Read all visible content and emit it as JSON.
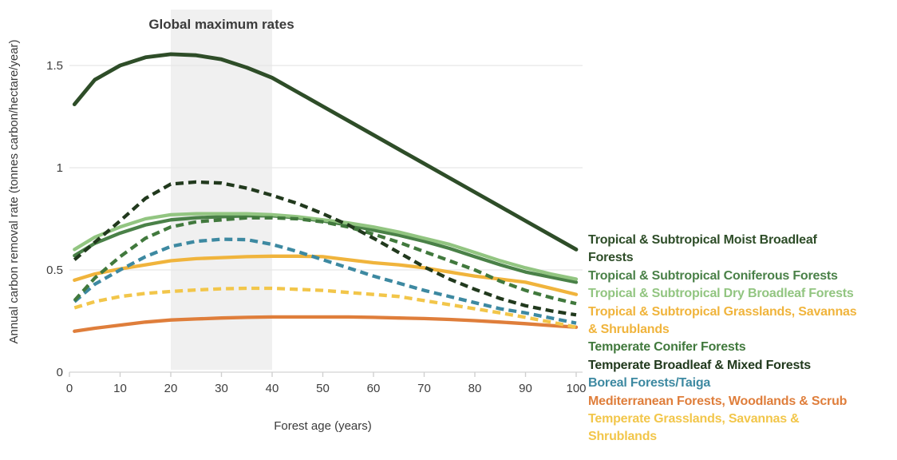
{
  "figure": {
    "annotation_label": "Global maximum rates"
  },
  "chart_data": {
    "type": "line",
    "title": "",
    "xlabel": "Forest age (years)",
    "ylabel": "Annual carbon removal rate (tonnes carbon/hectare/year)",
    "xlim": [
      0,
      100
    ],
    "ylim": [
      0,
      1.5
    ],
    "x_ticks": [
      0,
      10,
      20,
      30,
      40,
      50,
      60,
      70,
      80,
      90,
      100
    ],
    "y_ticks": [
      {
        "label": "0",
        "value": 0
      },
      {
        "label": "0.5",
        "value": 0.5
      },
      {
        "label": "1",
        "value": 1
      },
      {
        "label": "1.5",
        "value": 1.5
      }
    ],
    "grid": true,
    "legend_position": "right",
    "annotation": {
      "text": "Global maximum rates",
      "band_x_range": [
        20,
        40
      ],
      "band_color": "#f0f0f0",
      "text_color": "#3b3b3b"
    },
    "x": [
      1,
      5,
      10,
      15,
      20,
      25,
      30,
      35,
      40,
      45,
      50,
      55,
      60,
      65,
      70,
      75,
      80,
      85,
      90,
      95,
      100
    ],
    "series": [
      {
        "id": "tropical-moist-broadleaf",
        "name": "Tropical & Subtropical Moist Broadleaf\nForests",
        "color": "#2e4d28",
        "line_style": "solid",
        "z": 9,
        "values": [
          1.31,
          1.43,
          1.5,
          1.54,
          1.555,
          1.55,
          1.53,
          1.49,
          1.44,
          1.37,
          1.3,
          1.23,
          1.16,
          1.09,
          1.02,
          0.95,
          0.88,
          0.81,
          0.74,
          0.67,
          0.6
        ]
      },
      {
        "id": "tropical-coniferous",
        "name": "Tropical & Subtropical Coniferous Forests",
        "color": "#4a8148",
        "line_style": "solid",
        "z": 3,
        "values": [
          0.57,
          0.63,
          0.68,
          0.72,
          0.745,
          0.755,
          0.76,
          0.765,
          0.765,
          0.755,
          0.74,
          0.72,
          0.695,
          0.67,
          0.64,
          0.605,
          0.565,
          0.525,
          0.49,
          0.465,
          0.44
        ]
      },
      {
        "id": "tropical-dry-broadleaf",
        "name": "Tropical & Subtropical Dry Broadleaf Forests",
        "color": "#92c581",
        "line_style": "solid",
        "z": 4,
        "values": [
          0.6,
          0.66,
          0.71,
          0.75,
          0.77,
          0.775,
          0.775,
          0.775,
          0.77,
          0.76,
          0.745,
          0.73,
          0.71,
          0.685,
          0.655,
          0.625,
          0.585,
          0.545,
          0.51,
          0.48,
          0.455
        ]
      },
      {
        "id": "tropical-grasslands-savannas-shrublands",
        "name": "Tropical & Subtropical Grasslands, Savannas\n& Shrublands",
        "color": "#f0b43c",
        "line_style": "solid",
        "z": 2,
        "values": [
          0.45,
          0.48,
          0.505,
          0.525,
          0.545,
          0.555,
          0.56,
          0.565,
          0.567,
          0.567,
          0.565,
          0.55,
          0.535,
          0.525,
          0.51,
          0.49,
          0.47,
          0.455,
          0.44,
          0.41,
          0.38
        ]
      },
      {
        "id": "temperate-conifer",
        "name": "Temperate Conifer Forests",
        "color": "#41793d",
        "line_style": "dashed",
        "z": 7,
        "values": [
          0.35,
          0.46,
          0.565,
          0.655,
          0.71,
          0.735,
          0.745,
          0.755,
          0.755,
          0.75,
          0.735,
          0.71,
          0.675,
          0.635,
          0.59,
          0.545,
          0.5,
          0.445,
          0.4,
          0.365,
          0.335
        ]
      },
      {
        "id": "temperate-broadleaf-mixed",
        "name": "Temperate Broadleaf & Mixed Forests",
        "color": "#21391d",
        "line_style": "dashed",
        "z": 8,
        "values": [
          0.55,
          0.635,
          0.74,
          0.85,
          0.92,
          0.93,
          0.925,
          0.9,
          0.865,
          0.825,
          0.775,
          0.72,
          0.655,
          0.585,
          0.515,
          0.455,
          0.405,
          0.36,
          0.325,
          0.3,
          0.28
        ]
      },
      {
        "id": "boreal-taiga",
        "name": "Boreal Forests/Taiga",
        "color": "#3d89a1",
        "line_style": "dashed",
        "z": 6,
        "values": [
          0.345,
          0.43,
          0.5,
          0.565,
          0.615,
          0.64,
          0.65,
          0.648,
          0.625,
          0.59,
          0.55,
          0.51,
          0.47,
          0.435,
          0.4,
          0.37,
          0.34,
          0.31,
          0.29,
          0.265,
          0.24
        ]
      },
      {
        "id": "mediterranean-woodlands-scrub",
        "name": "Mediterranean Forests, Woodlands & Scrub",
        "color": "#df7e3b",
        "line_style": "solid",
        "z": 1,
        "values": [
          0.2,
          0.215,
          0.23,
          0.245,
          0.255,
          0.26,
          0.265,
          0.268,
          0.27,
          0.27,
          0.27,
          0.27,
          0.268,
          0.265,
          0.262,
          0.258,
          0.252,
          0.245,
          0.237,
          0.228,
          0.22
        ]
      },
      {
        "id": "temperate-grasslands-savannas-shrublands",
        "name": "Temperate Grasslands, Savannas &\nShrublands",
        "color": "#f2c64a",
        "line_style": "dashed",
        "z": 5,
        "values": [
          0.315,
          0.345,
          0.37,
          0.385,
          0.395,
          0.402,
          0.408,
          0.41,
          0.41,
          0.405,
          0.4,
          0.39,
          0.38,
          0.37,
          0.35,
          0.33,
          0.31,
          0.29,
          0.268,
          0.245,
          0.22
        ]
      }
    ],
    "style": {
      "grid_color": "#e7e7e7",
      "axis_color": "#dcdcdc",
      "tick_color": "#cfcfcf",
      "tick_label_color": "#3d3d3d",
      "axis_label_color": "#3a3a3a",
      "background": "#ffffff"
    }
  }
}
